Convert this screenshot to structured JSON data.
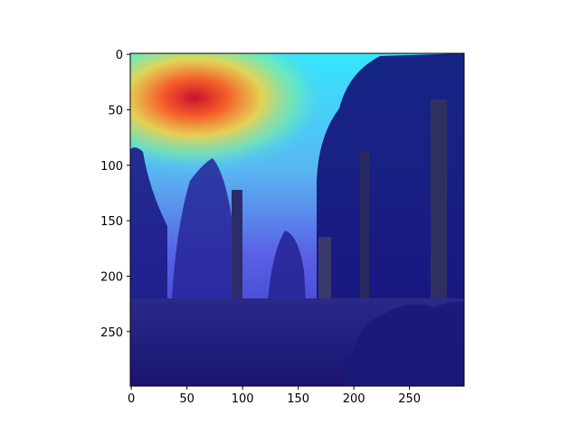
{
  "chart_data": {
    "type": "heatmap",
    "title": "",
    "xlabel": "",
    "ylabel": "",
    "image_description_shown": "photograph of totem poles and trees in a park, overlaid with a jet-colormap attention heatmap",
    "colormap": "jet",
    "xlim": [
      0,
      299
    ],
    "ylim": [
      299,
      0
    ],
    "xticks": [
      0,
      50,
      100,
      150,
      200,
      250
    ],
    "yticks": [
      0,
      50,
      100,
      150,
      200,
      250
    ],
    "xtick_labels": [
      "0",
      "50",
      "100",
      "150",
      "200",
      "250"
    ],
    "ytick_labels": [
      "0",
      "50",
      "100",
      "150",
      "200",
      "250"
    ],
    "hotspot": {
      "peak_x": 60,
      "peak_y": 42,
      "peak_level": "high",
      "description": "strongest activation in the sky region near the top-left"
    },
    "grid": false,
    "legend": "none"
  },
  "colors": {
    "background": "#ffffff",
    "axis": "#000000",
    "low": "#1a1aa0",
    "mid": "#4fe0e0",
    "high": "#e82020"
  }
}
